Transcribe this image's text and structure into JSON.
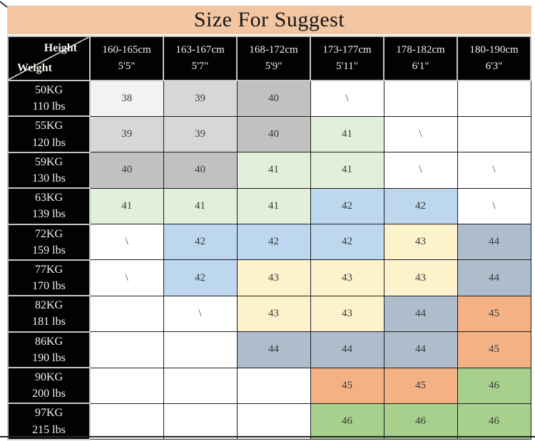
{
  "title": "Size For Suggest",
  "palette": {
    "title_bg": "#F2C6A2",
    "header_bg": "#020202",
    "header_text": "#F5F2EC",
    "grid_line": "#1C1C1C",
    "number_text": "#3A3A3A",
    "size_38": "#F2F2F2",
    "size_39": "#D7D7D7",
    "size_40": "#C1C1C1",
    "size_41": "#E2EFDA",
    "size_42": "#BDD7EE",
    "size_43": "#FEF2CC",
    "size_44": "#ADBDCC",
    "size_45": "#F4B183",
    "size_46": "#A7D08C"
  },
  "table": {
    "corner": {
      "height_label": "Height",
      "weight_label": "Weight"
    },
    "columns": [
      {
        "range_cm": "160-165cm",
        "height_ft": "5'5\""
      },
      {
        "range_cm": "163-167cm",
        "height_ft": "5'7\""
      },
      {
        "range_cm": "168-172cm",
        "height_ft": "5'9\""
      },
      {
        "range_cm": "173-177cm",
        "height_ft": "5'11\""
      },
      {
        "range_cm": "178-182cm",
        "height_ft": "6'1\""
      },
      {
        "range_cm": "180-190cm",
        "height_ft": "6'3\""
      }
    ],
    "rows": [
      {
        "weight_kg": "50KG",
        "weight_lbs": "110 lbs",
        "cells": [
          {
            "text": "38",
            "bg": "#F2F2F2"
          },
          {
            "text": "39",
            "bg": "#D7D7D7"
          },
          {
            "text": "40",
            "bg": "#C1C1C1"
          },
          {
            "text": "\\",
            "bg": "#FFFFFF"
          },
          {
            "text": "",
            "bg": "#FFFFFF"
          },
          {
            "text": "",
            "bg": "#FFFFFF"
          }
        ]
      },
      {
        "weight_kg": "55KG",
        "weight_lbs": "120 lbs",
        "cells": [
          {
            "text": "39",
            "bg": "#D7D7D7"
          },
          {
            "text": "39",
            "bg": "#D7D7D7"
          },
          {
            "text": "40",
            "bg": "#C1C1C1"
          },
          {
            "text": "41",
            "bg": "#E2EFDA"
          },
          {
            "text": "\\",
            "bg": "#FFFFFF"
          },
          {
            "text": "",
            "bg": "#FFFFFF"
          }
        ]
      },
      {
        "weight_kg": "59KG",
        "weight_lbs": "130 lbs",
        "cells": [
          {
            "text": "40",
            "bg": "#C1C1C1"
          },
          {
            "text": "40",
            "bg": "#C1C1C1"
          },
          {
            "text": "41",
            "bg": "#E2EFDA"
          },
          {
            "text": "41",
            "bg": "#E2EFDA"
          },
          {
            "text": "\\",
            "bg": "#FFFFFF"
          },
          {
            "text": "\\",
            "bg": "#FFFFFF"
          }
        ]
      },
      {
        "weight_kg": "63KG",
        "weight_lbs": "139 lbs",
        "cells": [
          {
            "text": "41",
            "bg": "#E2EFDA"
          },
          {
            "text": "41",
            "bg": "#E2EFDA"
          },
          {
            "text": "41",
            "bg": "#E2EFDA"
          },
          {
            "text": "42",
            "bg": "#BDD7EE"
          },
          {
            "text": "42",
            "bg": "#BDD7EE"
          },
          {
            "text": "\\",
            "bg": "#FFFFFF"
          }
        ]
      },
      {
        "weight_kg": "72KG",
        "weight_lbs": "159 lbs",
        "cells": [
          {
            "text": "\\",
            "bg": "#FFFFFF"
          },
          {
            "text": "42",
            "bg": "#BDD7EE"
          },
          {
            "text": "42",
            "bg": "#BDD7EE"
          },
          {
            "text": "42",
            "bg": "#BDD7EE"
          },
          {
            "text": "43",
            "bg": "#FEF2CC"
          },
          {
            "text": "44",
            "bg": "#ADBDCC"
          }
        ]
      },
      {
        "weight_kg": "77KG",
        "weight_lbs": "170 lbs",
        "cells": [
          {
            "text": "\\",
            "bg": "#FFFFFF"
          },
          {
            "text": "42",
            "bg": "#BDD7EE"
          },
          {
            "text": "43",
            "bg": "#FEF2CC"
          },
          {
            "text": "43",
            "bg": "#FEF2CC"
          },
          {
            "text": "43",
            "bg": "#FEF2CC"
          },
          {
            "text": "44",
            "bg": "#ADBDCC"
          }
        ]
      },
      {
        "weight_kg": "82KG",
        "weight_lbs": "181 lbs",
        "cells": [
          {
            "text": "",
            "bg": "#FFFFFF"
          },
          {
            "text": "\\",
            "bg": "#FFFFFF"
          },
          {
            "text": "43",
            "bg": "#FEF2CC"
          },
          {
            "text": "43",
            "bg": "#FEF2CC"
          },
          {
            "text": "44",
            "bg": "#ADBDCC"
          },
          {
            "text": "45",
            "bg": "#F4B183"
          }
        ]
      },
      {
        "weight_kg": "86KG",
        "weight_lbs": "190 lbs",
        "cells": [
          {
            "text": "",
            "bg": "#FFFFFF"
          },
          {
            "text": "",
            "bg": "#FFFFFF"
          },
          {
            "text": "44",
            "bg": "#ADBDCC"
          },
          {
            "text": "44",
            "bg": "#ADBDCC"
          },
          {
            "text": "44",
            "bg": "#ADBDCC"
          },
          {
            "text": "45",
            "bg": "#F4B183"
          }
        ]
      },
      {
        "weight_kg": "90KG",
        "weight_lbs": "200 lbs",
        "cells": [
          {
            "text": "",
            "bg": "#FFFFFF"
          },
          {
            "text": "",
            "bg": "#FFFFFF"
          },
          {
            "text": "",
            "bg": "#FFFFFF"
          },
          {
            "text": "45",
            "bg": "#F4B183"
          },
          {
            "text": "45",
            "bg": "#F4B183"
          },
          {
            "text": "46",
            "bg": "#A7D08C"
          }
        ]
      },
      {
        "weight_kg": "97KG",
        "weight_lbs": "215 lbs",
        "cells": [
          {
            "text": "",
            "bg": "#FFFFFF"
          },
          {
            "text": "",
            "bg": "#FFFFFF"
          },
          {
            "text": "",
            "bg": "#FFFFFF"
          },
          {
            "text": "46",
            "bg": "#A7D08C"
          },
          {
            "text": "46",
            "bg": "#A7D08C"
          },
          {
            "text": "46",
            "bg": "#A7D08C"
          }
        ]
      }
    ]
  },
  "chart_data": {
    "type": "table",
    "title": "Size For Suggest",
    "col_axis": "Height",
    "row_axis": "Weight",
    "columns": [
      "160-165cm 5'5\"",
      "163-167cm 5'7\"",
      "168-172cm 5'9\"",
      "173-177cm 5'11\"",
      "178-182cm 6'1\"",
      "180-190cm 6'3\""
    ],
    "rows": [
      "50KG 110 lbs",
      "55KG 120 lbs",
      "59KG 130 lbs",
      "63KG 139 lbs",
      "72KG 159 lbs",
      "77KG 170 lbs",
      "82KG 181 lbs",
      "86KG 190 lbs",
      "90KG 200 lbs",
      "97KG 215 lbs"
    ],
    "values": [
      [
        "38",
        "39",
        "40",
        "\\",
        "",
        ""
      ],
      [
        "39",
        "39",
        "40",
        "41",
        "\\",
        ""
      ],
      [
        "40",
        "40",
        "41",
        "41",
        "\\",
        "\\"
      ],
      [
        "41",
        "41",
        "41",
        "42",
        "42",
        "\\"
      ],
      [
        "\\",
        "42",
        "42",
        "42",
        "43",
        "44"
      ],
      [
        "\\",
        "42",
        "43",
        "43",
        "43",
        "44"
      ],
      [
        "",
        "\\",
        "43",
        "43",
        "44",
        "45"
      ],
      [
        "",
        "",
        "44",
        "44",
        "44",
        "45"
      ],
      [
        "",
        "",
        "",
        "45",
        "45",
        "46"
      ],
      [
        "",
        "",
        "",
        "46",
        "46",
        "46"
      ]
    ]
  }
}
